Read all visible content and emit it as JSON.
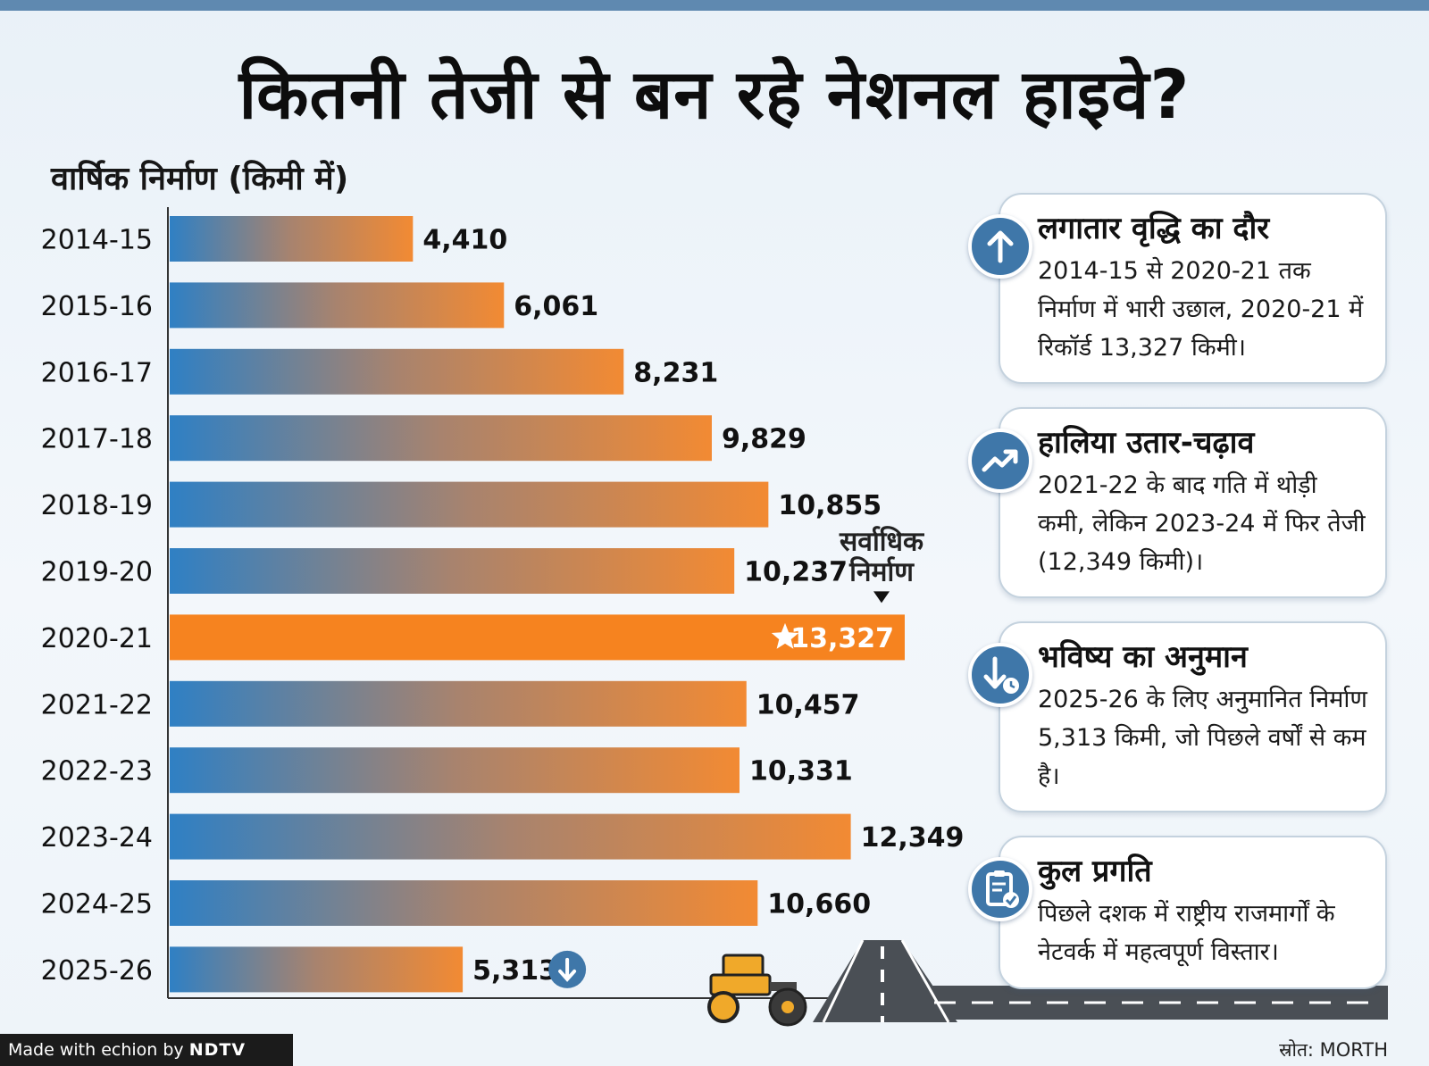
{
  "title": "कितनी तेजी से बन रहे नेशनल हाइवे?",
  "subtitle": "वार्षिक निर्माण (किमी में)",
  "chart_data": {
    "type": "bar",
    "orientation": "horizontal",
    "title": "कितनी तेजी से बन रहे नेशनल हाइवे?",
    "ylabel": "वार्षिक निर्माण (किमी में)",
    "categories": [
      "2014-15",
      "2015-16",
      "2016-17",
      "2017-18",
      "2018-19",
      "2019-20",
      "2020-21",
      "2021-22",
      "2022-23",
      "2023-24",
      "2024-25",
      "2025-26"
    ],
    "values": [
      4410,
      6061,
      8231,
      9829,
      10855,
      10237,
      13327,
      10457,
      10331,
      12349,
      10660,
      5313
    ],
    "value_labels": [
      "4,410",
      "6,061",
      "8,231",
      "9,829",
      "10,855",
      "10,237",
      "13,327",
      "10,457",
      "10,331",
      "12,349",
      "10,660",
      "5,313"
    ],
    "xlim": [
      0,
      13327
    ],
    "highlight_index": 6,
    "highlight_annotation": [
      "सर्वाधिक",
      "निर्माण"
    ],
    "decline_index": 11,
    "colors": {
      "bar_start": "#2f80c4",
      "bar_mid": "#a8836e",
      "bar_end": "#f28a33",
      "peak": "#f6831f"
    }
  },
  "cards": [
    {
      "icon": "arrow-up-icon",
      "title": "लगातार वृद्धि का दौर",
      "body": "2014-15 से 2020-21 तक निर्माण में भारी उछाल, 2020-21 में रिकॉर्ड 13,327 किमी।"
    },
    {
      "icon": "trend-up-icon",
      "title": "हालिया उतार-चढ़ाव",
      "body": "2021-22 के बाद गति में थोड़ी कमी, लेकिन 2023-24 में फिर तेजी (12,349 किमी)।"
    },
    {
      "icon": "arrow-down-clock-icon",
      "title": "भविष्य का अनुमान",
      "body": "2025-26 के लिए अनुमानित निर्माण 5,313 किमी, जो पिछले वर्षों से कम है।"
    },
    {
      "icon": "clipboard-check-icon",
      "title": "कुल प्रगति",
      "body": "पिछले दशक में राष्ट्रीय राजमार्गों के नेटवर्क में महत्वपूर्ण विस्तार।"
    }
  ],
  "footer": {
    "made_with": "Made with",
    "brand": "echion",
    "by": "by",
    "publisher": "NDTV"
  },
  "source": "स्रोत: MORTH",
  "colors": {
    "top_strip": "#5f89b0",
    "icon_circle": "#3f77a9",
    "road": "#4a4f55"
  }
}
